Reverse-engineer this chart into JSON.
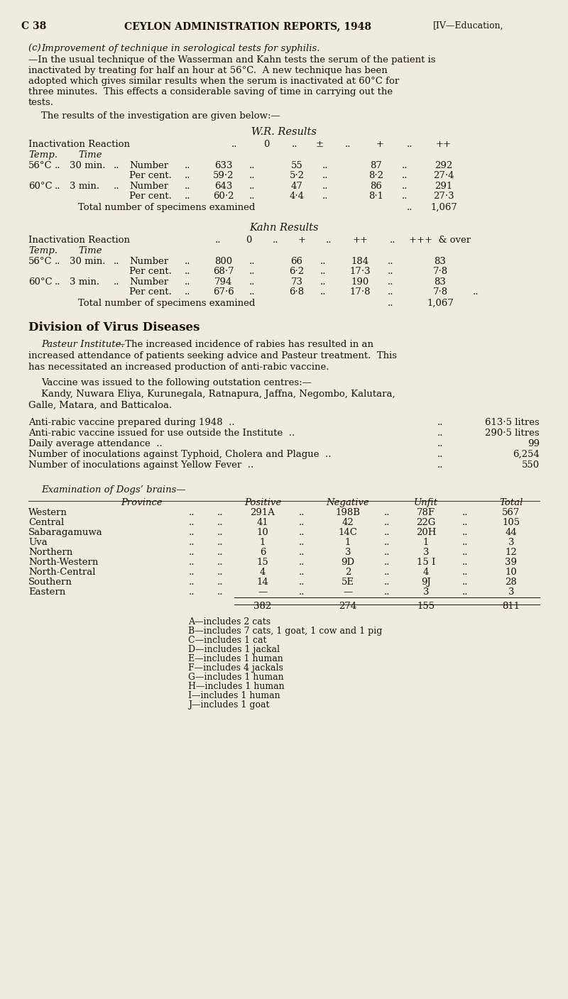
{
  "bg_color": "#f0ebe0",
  "text_color": "#1a1008",
  "page_header_left": "C 38",
  "page_header_center": "CEYLON ADMINISTRATION REPORTS, 1948",
  "page_header_right": "[IV—Education,",
  "wr_title": "W.R. Results",
  "kahn_title": "Kahn Results",
  "virus_header": "Division of Virus Diseases",
  "dogs_title": "Examination of Dogs’ brains—",
  "dogs_cols": [
    "Province",
    "Positive",
    "Negative",
    "Unfit",
    "Total"
  ],
  "dogs_rows": [
    [
      "Western",
      "..",
      "..",
      "291A",
      "..",
      "198B",
      "..",
      "78F",
      "..",
      "567"
    ],
    [
      "Central",
      "..",
      "..",
      "41",
      "..",
      "42",
      "..",
      "22G",
      "..",
      "105"
    ],
    [
      "Sabaragamuwa",
      "..",
      "..",
      "10",
      "..",
      "14C",
      "..",
      "20H",
      "..",
      "44"
    ],
    [
      "Uva",
      "..",
      "..",
      "1",
      "..",
      "1",
      "..",
      "1",
      "..",
      "3"
    ],
    [
      "Northern",
      "..",
      "..",
      "6",
      "..",
      "3",
      "..",
      "3",
      "..",
      "12"
    ],
    [
      "North-Western",
      "..",
      "..",
      "15",
      "..",
      "9D",
      "..",
      "15 I",
      "..",
      "39"
    ],
    [
      "North-Central",
      "..",
      "..",
      "4",
      "..",
      "2",
      "..",
      "4",
      "..",
      "10"
    ],
    [
      "Southern",
      "..",
      "..",
      "14",
      "..",
      "5E",
      "..",
      "9J",
      "..",
      "28"
    ],
    [
      "Eastern",
      "..",
      "..",
      "—",
      "..",
      "—",
      "..",
      "3",
      "..",
      "3"
    ]
  ],
  "dogs_totals": [
    "382",
    "274",
    "155",
    "811"
  ],
  "footnotes": [
    "A—includes 2 cats",
    "B—includes 7 cats, 1 goat, 1 cow and 1 pig",
    "C—includes 1 cat",
    "D—includes 1 jackal",
    "E—includes 1 human",
    "F—includes 4 jackals",
    "G—includes 1 human",
    "H—includes 1 human",
    "I—includes 1 human",
    "J—includes 1 goat"
  ]
}
